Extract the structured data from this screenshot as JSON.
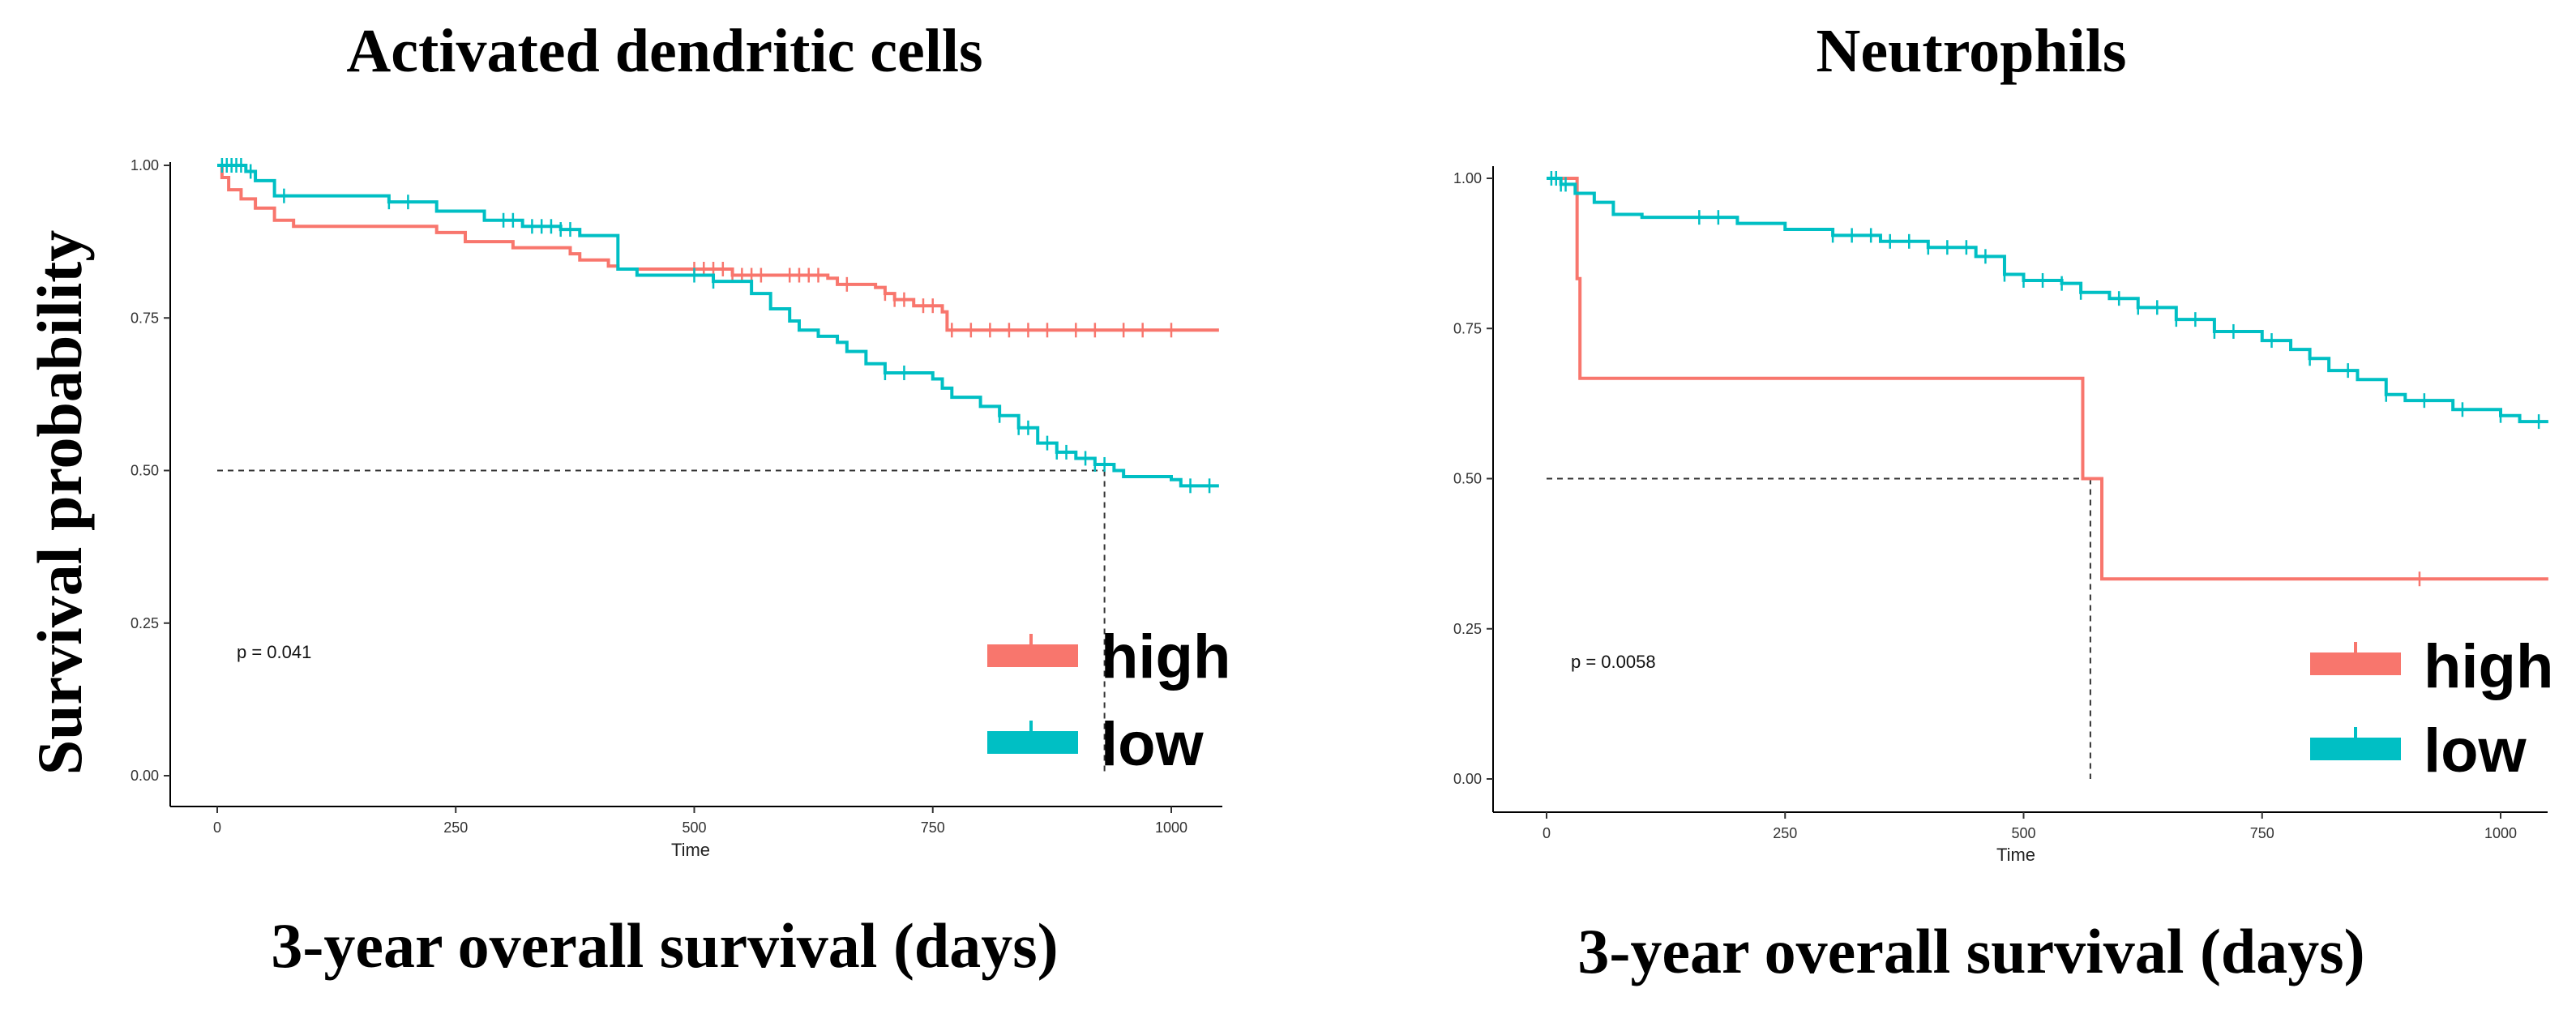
{
  "figure": {
    "shared_ylabel": "Survival probability"
  },
  "chart_data": [
    {
      "type": "line",
      "subtype": "kaplan-meier",
      "title": "Activated dendritic cells",
      "xlabel": "Time",
      "caption": "3-year overall survival (days)",
      "ylabel": "Survival probability",
      "xlim": [
        0,
        1050
      ],
      "ylim": [
        0,
        1
      ],
      "xticks": [
        "0",
        "250",
        "500",
        "750",
        "1000"
      ],
      "xtick_values": [
        0,
        250,
        500,
        750,
        1000
      ],
      "yticks": [
        "0.00",
        "0.25",
        "0.50",
        "0.75",
        "1.00"
      ],
      "ytick_values": [
        0,
        0.25,
        0.5,
        0.75,
        1.0
      ],
      "pvalue": "p = 0.041",
      "median_line": {
        "y": 0.5,
        "x": 930
      },
      "series": [
        {
          "name": "high",
          "color": "#F8766D",
          "steps": [
            [
              0,
              1.0
            ],
            [
              5,
              0.98
            ],
            [
              12,
              0.96
            ],
            [
              25,
              0.945
            ],
            [
              40,
              0.93
            ],
            [
              60,
              0.91
            ],
            [
              80,
              0.9
            ],
            [
              150,
              0.9
            ],
            [
              230,
              0.89
            ],
            [
              260,
              0.875
            ],
            [
              310,
              0.865
            ],
            [
              370,
              0.855
            ],
            [
              380,
              0.845
            ],
            [
              410,
              0.835
            ],
            [
              420,
              0.83
            ],
            [
              530,
              0.83
            ],
            [
              540,
              0.82
            ],
            [
              640,
              0.815
            ],
            [
              650,
              0.805
            ],
            [
              690,
              0.8
            ],
            [
              700,
              0.79
            ],
            [
              710,
              0.78
            ],
            [
              730,
              0.77
            ],
            [
              760,
              0.76
            ],
            [
              765,
              0.73
            ],
            [
              1050,
              0.73
            ]
          ],
          "censors": [
            500,
            510,
            520,
            530,
            540,
            550,
            560,
            570,
            600,
            610,
            620,
            630,
            660,
            700,
            710,
            720,
            740,
            750,
            770,
            790,
            810,
            830,
            850,
            870,
            900,
            920,
            950,
            970,
            1000
          ]
        },
        {
          "name": "low",
          "color": "#00BFC4",
          "steps": [
            [
              0,
              1.0
            ],
            [
              30,
              0.99
            ],
            [
              40,
              0.975
            ],
            [
              60,
              0.95
            ],
            [
              180,
              0.94
            ],
            [
              230,
              0.925
            ],
            [
              280,
              0.91
            ],
            [
              320,
              0.9
            ],
            [
              360,
              0.895
            ],
            [
              380,
              0.885
            ],
            [
              420,
              0.83
            ],
            [
              440,
              0.82
            ],
            [
              520,
              0.81
            ],
            [
              560,
              0.79
            ],
            [
              580,
              0.765
            ],
            [
              600,
              0.745
            ],
            [
              610,
              0.73
            ],
            [
              630,
              0.72
            ],
            [
              650,
              0.71
            ],
            [
              660,
              0.695
            ],
            [
              680,
              0.675
            ],
            [
              700,
              0.66
            ],
            [
              750,
              0.65
            ],
            [
              760,
              0.635
            ],
            [
              770,
              0.62
            ],
            [
              800,
              0.605
            ],
            [
              820,
              0.59
            ],
            [
              840,
              0.57
            ],
            [
              860,
              0.545
            ],
            [
              880,
              0.53
            ],
            [
              900,
              0.52
            ],
            [
              920,
              0.51
            ],
            [
              940,
              0.5
            ],
            [
              950,
              0.49
            ],
            [
              1000,
              0.485
            ],
            [
              1010,
              0.475
            ],
            [
              1050,
              0.475
            ]
          ],
          "censors": [
            5,
            10,
            15,
            20,
            25,
            35,
            70,
            180,
            200,
            300,
            310,
            330,
            340,
            350,
            360,
            370,
            500,
            520,
            700,
            720,
            820,
            840,
            850,
            870,
            880,
            890,
            910,
            920,
            930,
            1020,
            1040
          ]
        }
      ],
      "legend": [
        "high",
        "low"
      ]
    },
    {
      "type": "line",
      "subtype": "kaplan-meier",
      "title": "Neutrophils",
      "xlabel": "Time",
      "caption": "3-year overall survival (days)",
      "ylabel": "Survival probability",
      "xlim": [
        0,
        1050
      ],
      "ylim": [
        0,
        1
      ],
      "xticks": [
        "0",
        "250",
        "500",
        "750",
        "1000"
      ],
      "xtick_values": [
        0,
        250,
        500,
        750,
        1000
      ],
      "yticks": [
        "0.00",
        "0.25",
        "0.50",
        "0.75",
        "1.00"
      ],
      "ytick_values": [
        0,
        0.25,
        0.5,
        0.75,
        1.0
      ],
      "pvalue": "p = 0.0058",
      "median_line": {
        "y": 0.5,
        "x": 570
      },
      "series": [
        {
          "name": "high",
          "color": "#F8766D",
          "steps": [
            [
              0,
              1.0
            ],
            [
              30,
              1.0
            ],
            [
              32,
              0.833
            ],
            [
              35,
              0.667
            ],
            [
              560,
              0.667
            ],
            [
              562,
              0.5
            ],
            [
              580,
              0.5
            ],
            [
              582,
              0.333
            ],
            [
              1050,
              0.333
            ]
          ],
          "censors": [
            915
          ]
        },
        {
          "name": "low",
          "color": "#00BFC4",
          "steps": [
            [
              0,
              1.0
            ],
            [
              15,
              0.99
            ],
            [
              30,
              0.975
            ],
            [
              50,
              0.96
            ],
            [
              70,
              0.94
            ],
            [
              100,
              0.935
            ],
            [
              200,
              0.925
            ],
            [
              250,
              0.915
            ],
            [
              300,
              0.905
            ],
            [
              350,
              0.895
            ],
            [
              400,
              0.885
            ],
            [
              450,
              0.87
            ],
            [
              480,
              0.84
            ],
            [
              500,
              0.83
            ],
            [
              540,
              0.825
            ],
            [
              560,
              0.81
            ],
            [
              590,
              0.8
            ],
            [
              620,
              0.785
            ],
            [
              660,
              0.765
            ],
            [
              700,
              0.745
            ],
            [
              750,
              0.73
            ],
            [
              780,
              0.715
            ],
            [
              800,
              0.7
            ],
            [
              820,
              0.68
            ],
            [
              850,
              0.665
            ],
            [
              880,
              0.64
            ],
            [
              900,
              0.63
            ],
            [
              950,
              0.615
            ],
            [
              1000,
              0.605
            ],
            [
              1020,
              0.595
            ],
            [
              1050,
              0.595
            ]
          ],
          "censors": [
            5,
            10,
            15,
            20,
            160,
            180,
            300,
            320,
            340,
            360,
            380,
            400,
            420,
            440,
            460,
            480,
            500,
            520,
            540,
            560,
            600,
            620,
            640,
            660,
            680,
            700,
            720,
            760,
            800,
            840,
            880,
            920,
            960,
            1000,
            1040
          ]
        }
      ],
      "legend": [
        "high",
        "low"
      ]
    }
  ]
}
